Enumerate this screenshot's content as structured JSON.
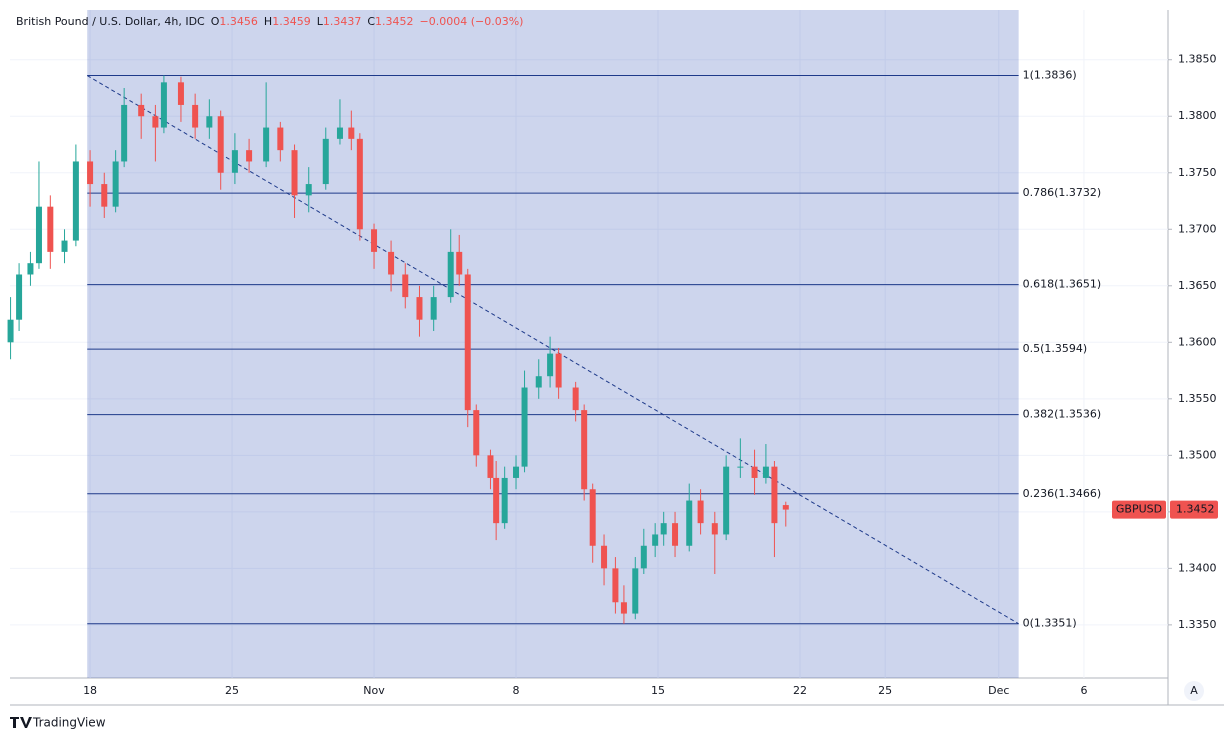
{
  "chart_data": {
    "type": "candlestick",
    "header": {
      "symbol": "British Pound / U.S. Dollar, 4h, IDC",
      "ohlc": [
        {
          "key": "O",
          "value": "1.3456"
        },
        {
          "key": "H",
          "value": "1.3459"
        },
        {
          "key": "L",
          "value": "1.3437"
        },
        {
          "key": "C",
          "value": "1.3452"
        }
      ],
      "change": "−0.0004 (−0.03%)"
    },
    "x": [
      -2.8,
      -2.5,
      -2.1,
      -1.8,
      -1.4,
      -0.9,
      -0.5,
      0,
      0.5,
      0.9,
      1.2,
      1.8,
      2.3,
      2.6,
      3.2,
      3.7,
      4.2,
      4.6,
      5.1,
      5.6,
      6.2,
      6.7,
      7.2,
      7.7,
      8.3,
      8.8,
      9.2,
      9.5,
      10.0,
      10.6,
      11.1,
      11.6,
      12.1,
      12.7,
      13.0,
      13.3,
      13.6,
      14.1,
      14.3,
      14.6,
      15.0,
      15.3,
      15.8,
      16.2,
      16.5,
      17.1,
      17.4,
      17.7,
      18.1,
      18.5,
      18.8,
      19.2,
      19.5,
      19.9,
      20.2,
      20.6,
      21.1,
      21.5,
      22.0,
      22.4,
      22.9,
      23.4,
      23.8,
      24.1,
      24.5
    ],
    "open": [
      1.36,
      1.362,
      1.366,
      1.367,
      1.372,
      1.368,
      1.369,
      1.376,
      1.374,
      1.372,
      1.376,
      1.381,
      1.38,
      1.379,
      1.383,
      1.381,
      1.379,
      1.38,
      1.375,
      1.377,
      1.376,
      1.379,
      1.377,
      1.373,
      1.374,
      1.378,
      1.379,
      1.378,
      1.37,
      1.368,
      1.366,
      1.364,
      1.362,
      1.364,
      1.368,
      1.366,
      1.354,
      1.35,
      1.348,
      1.344,
      1.348,
      1.349,
      1.356,
      1.357,
      1.359,
      1.356,
      1.354,
      1.347,
      1.342,
      1.34,
      1.337,
      1.336,
      1.34,
      1.342,
      1.343,
      1.344,
      1.342,
      1.346,
      1.344,
      1.343,
      1.349,
      1.349,
      1.348,
      1.349,
      1.3456
    ],
    "high": [
      1.364,
      1.367,
      1.368,
      1.376,
      1.373,
      1.37,
      1.3775,
      1.377,
      1.375,
      1.377,
      1.3825,
      1.382,
      1.381,
      1.3836,
      1.3835,
      1.382,
      1.3815,
      1.3805,
      1.3785,
      1.378,
      1.383,
      1.3795,
      1.3775,
      1.3755,
      1.379,
      1.3815,
      1.3805,
      1.3785,
      1.3705,
      1.369,
      1.367,
      1.365,
      1.365,
      1.37,
      1.3695,
      1.3665,
      1.3545,
      1.3505,
      1.3495,
      1.349,
      1.35,
      1.3575,
      1.3585,
      1.3605,
      1.3595,
      1.3565,
      1.3545,
      1.3475,
      1.343,
      1.341,
      1.3385,
      1.341,
      1.3435,
      1.344,
      1.345,
      1.345,
      1.3475,
      1.347,
      1.345,
      1.35,
      1.3515,
      1.3505,
      1.351,
      1.3495,
      1.3459
    ],
    "low": [
      1.3585,
      1.361,
      1.365,
      1.3665,
      1.3665,
      1.367,
      1.3685,
      1.372,
      1.371,
      1.3715,
      1.3755,
      1.378,
      1.376,
      1.3785,
      1.3795,
      1.378,
      1.378,
      1.3735,
      1.374,
      1.375,
      1.3755,
      1.376,
      1.371,
      1.3715,
      1.3735,
      1.3775,
      1.377,
      1.369,
      1.3665,
      1.3645,
      1.363,
      1.3605,
      1.361,
      1.3635,
      1.365,
      1.3525,
      1.349,
      1.347,
      1.3425,
      1.3435,
      1.347,
      1.3485,
      1.355,
      1.356,
      1.355,
      1.353,
      1.346,
      1.3405,
      1.3385,
      1.336,
      1.3351,
      1.3355,
      1.3395,
      1.341,
      1.342,
      1.341,
      1.3415,
      1.343,
      1.3395,
      1.3425,
      1.348,
      1.3465,
      1.3475,
      1.341,
      1.3437
    ],
    "close": [
      1.362,
      1.366,
      1.367,
      1.372,
      1.368,
      1.369,
      1.376,
      1.374,
      1.372,
      1.376,
      1.381,
      1.38,
      1.379,
      1.383,
      1.381,
      1.379,
      1.38,
      1.375,
      1.377,
      1.376,
      1.379,
      1.377,
      1.373,
      1.374,
      1.378,
      1.379,
      1.378,
      1.37,
      1.368,
      1.366,
      1.364,
      1.362,
      1.364,
      1.368,
      1.366,
      1.354,
      1.35,
      1.348,
      1.344,
      1.348,
      1.349,
      1.356,
      1.357,
      1.359,
      1.356,
      1.354,
      1.347,
      1.342,
      1.34,
      1.337,
      1.336,
      1.34,
      1.342,
      1.343,
      1.344,
      1.342,
      1.346,
      1.344,
      1.343,
      1.349,
      1.349,
      1.348,
      1.349,
      1.344,
      1.3452
    ],
    "up_color": "#26a69a",
    "down_color": "#ef5350",
    "fib": {
      "x": [
        -0.1,
        32.7
      ],
      "color": "#1e3a8a",
      "levels": [
        {
          "label": "1(1.3836)",
          "value": 1.3836
        },
        {
          "label": "0.786(1.3732)",
          "value": 1.3732
        },
        {
          "label": "0.618(1.3651)",
          "value": 1.3651
        },
        {
          "label": "0.5(1.3594)",
          "value": 1.3594
        },
        {
          "label": "0.382(1.3536)",
          "value": 1.3536
        },
        {
          "label": "0.236(1.3466)",
          "value": 1.3466
        },
        {
          "label": "0(1.3351)",
          "value": 1.3351
        }
      ]
    },
    "trendline": {
      "x": [
        -0.1,
        32.7
      ],
      "y": [
        1.3836,
        1.3351
      ]
    },
    "xlim": [
      -2.82,
      37.96
    ],
    "xticks": [
      {
        "value": 0,
        "label": "18"
      },
      {
        "value": 5,
        "label": "25"
      },
      {
        "value": 10,
        "label": "Nov"
      },
      {
        "value": 15,
        "label": "8"
      },
      {
        "value": 20,
        "label": "15"
      },
      {
        "value": 25,
        "label": "22"
      },
      {
        "value": 28,
        "label": "25"
      },
      {
        "value": 32,
        "label": "Dec"
      },
      {
        "value": 35,
        "label": "6"
      }
    ],
    "ylim": [
      1.3303,
      1.3894
    ],
    "yticks": [
      {
        "value": 1.335,
        "label": "1.3350"
      },
      {
        "value": 1.34,
        "label": "1.3400"
      },
      {
        "value": 1.345,
        "label": "1.3450"
      },
      {
        "value": 1.35,
        "label": "1.3500"
      },
      {
        "value": 1.355,
        "label": "1.3550"
      },
      {
        "value": 1.36,
        "label": "1.3600"
      },
      {
        "value": 1.365,
        "label": "1.3650"
      },
      {
        "value": 1.37,
        "label": "1.3700"
      },
      {
        "value": 1.375,
        "label": "1.3750"
      },
      {
        "value": 1.38,
        "label": "1.3800"
      },
      {
        "value": 1.385,
        "label": "1.3850"
      }
    ],
    "grid": true,
    "price_badge": {
      "symbol": "GBPUSD",
      "value": {
        "value": 1.3452,
        "label": "1.3452"
      }
    },
    "scale_button": "A",
    "footer": "TradingView"
  }
}
